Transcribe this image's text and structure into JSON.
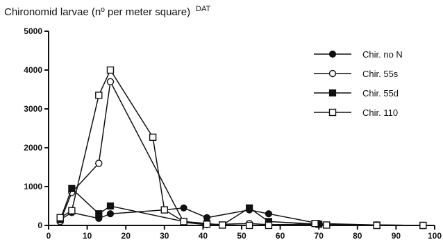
{
  "chart_data": {
    "type": "line",
    "title": "Chironomid larvae (nº per meter square)",
    "title_superscript": "DAT",
    "xlabel": "",
    "ylabel": "",
    "xlim": [
      0,
      100
    ],
    "ylim": [
      0,
      5000
    ],
    "x_ticks": [
      0,
      10,
      20,
      30,
      40,
      50,
      60,
      70,
      80,
      90,
      100
    ],
    "y_ticks": [
      0,
      1000,
      2000,
      3000,
      4000,
      5000
    ],
    "grid": false,
    "legend_position": "top-right",
    "series": [
      {
        "name": "Chir. no N",
        "marker": "filled-circle",
        "points": [
          {
            "x": 3,
            "y": 150
          },
          {
            "x": 6,
            "y": 330
          },
          {
            "x": 13,
            "y": 180
          },
          {
            "x": 16,
            "y": 300
          },
          {
            "x": 30,
            "y": 400
          },
          {
            "x": 35,
            "y": 450
          },
          {
            "x": 41,
            "y": 200
          },
          {
            "x": 52,
            "y": 400
          },
          {
            "x": 57,
            "y": 300
          },
          {
            "x": 70,
            "y": 50
          },
          {
            "x": 85,
            "y": 10
          },
          {
            "x": 97,
            "y": 0
          }
        ]
      },
      {
        "name": "Chir. 55s",
        "marker": "open-circle",
        "points": [
          {
            "x": 3,
            "y": 100
          },
          {
            "x": 6,
            "y": 850
          },
          {
            "x": 13,
            "y": 1600
          },
          {
            "x": 16,
            "y": 3700
          },
          {
            "x": 35,
            "y": 80
          },
          {
            "x": 41,
            "y": 20
          },
          {
            "x": 52,
            "y": 50
          },
          {
            "x": 57,
            "y": 20
          },
          {
            "x": 70,
            "y": 30
          },
          {
            "x": 85,
            "y": 10
          },
          {
            "x": 97,
            "y": 0
          }
        ]
      },
      {
        "name": "Chir. 55d",
        "marker": "filled-square",
        "points": [
          {
            "x": 3,
            "y": 150
          },
          {
            "x": 6,
            "y": 950
          },
          {
            "x": 13,
            "y": 300
          },
          {
            "x": 16,
            "y": 500
          },
          {
            "x": 35,
            "y": 100
          },
          {
            "x": 41,
            "y": 50
          },
          {
            "x": 45,
            "y": 10
          },
          {
            "x": 52,
            "y": 450
          },
          {
            "x": 57,
            "y": 100
          },
          {
            "x": 70,
            "y": 30
          },
          {
            "x": 85,
            "y": 10
          },
          {
            "x": 97,
            "y": 0
          }
        ]
      },
      {
        "name": "Chir. 110",
        "marker": "open-square",
        "points": [
          {
            "x": 3,
            "y": 200
          },
          {
            "x": 6,
            "y": 380
          },
          {
            "x": 13,
            "y": 3350
          },
          {
            "x": 16,
            "y": 4000
          },
          {
            "x": 27,
            "y": 2270
          },
          {
            "x": 30,
            "y": 400
          },
          {
            "x": 35,
            "y": 100
          },
          {
            "x": 41,
            "y": 30
          },
          {
            "x": 45,
            "y": 10
          },
          {
            "x": 52,
            "y": 0
          },
          {
            "x": 57,
            "y": 0
          },
          {
            "x": 69,
            "y": 50
          },
          {
            "x": 72,
            "y": 10
          },
          {
            "x": 85,
            "y": 0
          },
          {
            "x": 97,
            "y": 0
          }
        ]
      }
    ]
  }
}
